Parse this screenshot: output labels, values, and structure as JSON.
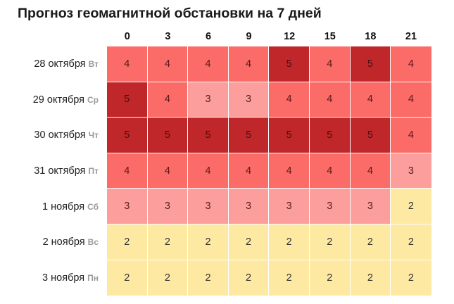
{
  "title": "Прогноз геомагнитной обстановки на 7 дней",
  "hours": [
    "0",
    "3",
    "6",
    "9",
    "12",
    "15",
    "18",
    "21"
  ],
  "days": [
    {
      "date": "28 октября",
      "dow": "Вт",
      "values": [
        4,
        4,
        4,
        4,
        5,
        4,
        5,
        4
      ]
    },
    {
      "date": "29 октября",
      "dow": "Ср",
      "values": [
        5,
        4,
        3,
        3,
        4,
        4,
        4,
        4
      ]
    },
    {
      "date": "30 октября",
      "dow": "Чт",
      "values": [
        5,
        5,
        5,
        5,
        5,
        5,
        5,
        4
      ]
    },
    {
      "date": "31 октября",
      "dow": "Пт",
      "values": [
        4,
        4,
        4,
        4,
        4,
        4,
        4,
        3
      ]
    },
    {
      "date": "1 ноября",
      "dow": "Сб",
      "values": [
        3,
        3,
        3,
        3,
        3,
        3,
        3,
        2
      ]
    },
    {
      "date": "2 ноября",
      "dow": "Вс",
      "values": [
        2,
        2,
        2,
        2,
        2,
        2,
        2,
        2
      ]
    },
    {
      "date": "3 ноября",
      "dow": "Пн",
      "values": [
        2,
        2,
        2,
        2,
        2,
        2,
        2,
        2
      ]
    }
  ],
  "colors": {
    "2": {
      "bg": "#fde9a2",
      "fg": "#333333"
    },
    "3": {
      "bg": "#fb9e9c",
      "fg": "#5a1e1e"
    },
    "4": {
      "bg": "#fb6b67",
      "fg": "#5a1a1a"
    },
    "5": {
      "bg": "#c0272a",
      "fg": "#4a0e0e"
    }
  },
  "chart_data": {
    "type": "heatmap",
    "title": "Прогноз геомагнитной обстановки на 7 дней",
    "x": [
      "0",
      "3",
      "6",
      "9",
      "12",
      "15",
      "18",
      "21"
    ],
    "y": [
      "28 октября Вт",
      "29 октября Ср",
      "30 октября Чт",
      "31 октября Пт",
      "1 ноября Сб",
      "2 ноября Вс",
      "3 ноября Пн"
    ],
    "values": [
      [
        4,
        4,
        4,
        4,
        5,
        4,
        5,
        4
      ],
      [
        5,
        4,
        3,
        3,
        4,
        4,
        4,
        4
      ],
      [
        5,
        5,
        5,
        5,
        5,
        5,
        5,
        4
      ],
      [
        4,
        4,
        4,
        4,
        4,
        4,
        4,
        3
      ],
      [
        3,
        3,
        3,
        3,
        3,
        3,
        3,
        2
      ],
      [
        2,
        2,
        2,
        2,
        2,
        2,
        2,
        2
      ],
      [
        2,
        2,
        2,
        2,
        2,
        2,
        2,
        2
      ]
    ],
    "xlabel": "",
    "ylabel": "",
    "legend": false,
    "grid": true
  }
}
